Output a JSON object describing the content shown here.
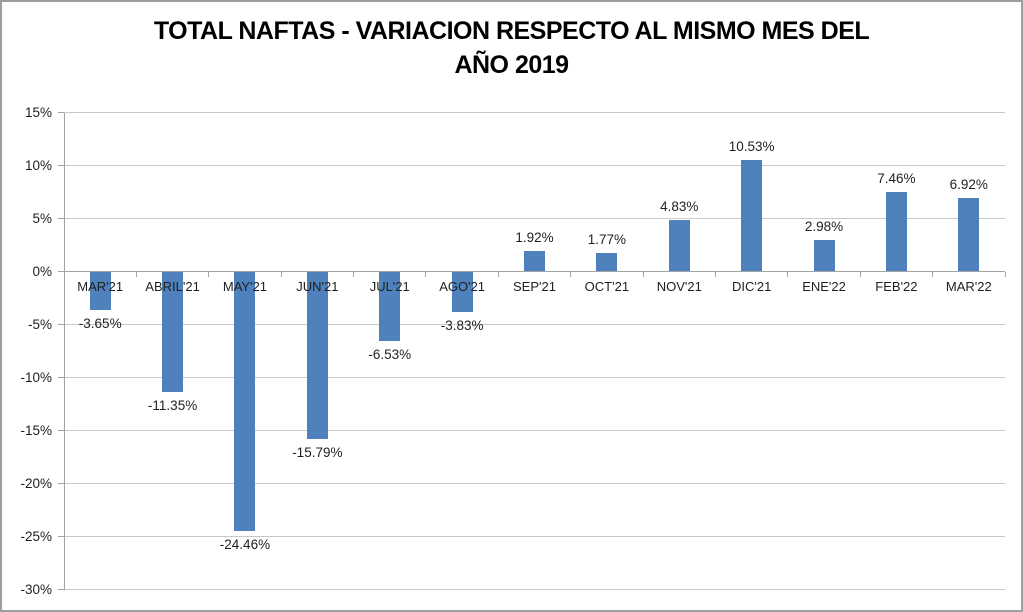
{
  "chart_data": {
    "type": "bar",
    "title": "TOTAL NAFTAS - VARIACION RESPECTO AL MISMO MES DEL AÑO 2019",
    "title_lines": [
      "TOTAL NAFTAS - VARIACION RESPECTO AL MISMO MES DEL",
      "AÑO 2019"
    ],
    "categories": [
      "MAR'21",
      "ABRIL'21",
      "MAY'21",
      "JUN'21",
      "JUL'21",
      "AGO'21",
      "SEP'21",
      "OCT'21",
      "NOV'21",
      "DIC'21",
      "ENE'22",
      "FEB'22",
      "MAR'22"
    ],
    "values": [
      -3.65,
      -11.35,
      -24.46,
      -15.79,
      -6.53,
      -3.83,
      1.92,
      1.77,
      4.83,
      10.53,
      2.98,
      7.46,
      6.92
    ],
    "data_labels": [
      "-3.65%",
      "-11.35%",
      "-24.46%",
      "-15.79%",
      "-6.53%",
      "-3.83%",
      "1.92%",
      "1.77%",
      "4.83%",
      "10.53%",
      "2.98%",
      "7.46%",
      "6.92%"
    ],
    "xlabel": "",
    "ylabel": "",
    "ylim": [
      -30,
      15
    ],
    "y_tick_step": 5,
    "y_tick_labels": [
      "15%",
      "10%",
      "5%",
      "0%",
      "-5%",
      "-10%",
      "-15%",
      "-20%",
      "-25%",
      "-30%"
    ],
    "grid": true,
    "legend_position": "none",
    "colors": {
      "bar": "#4F81BD",
      "gridline": "#C8C8C8",
      "axis": "#A3A3A3",
      "label_text": "#1F1F1F",
      "title_text": "#000000",
      "chart_border": "#9E9E9E",
      "background": "#FFFFFF"
    }
  }
}
